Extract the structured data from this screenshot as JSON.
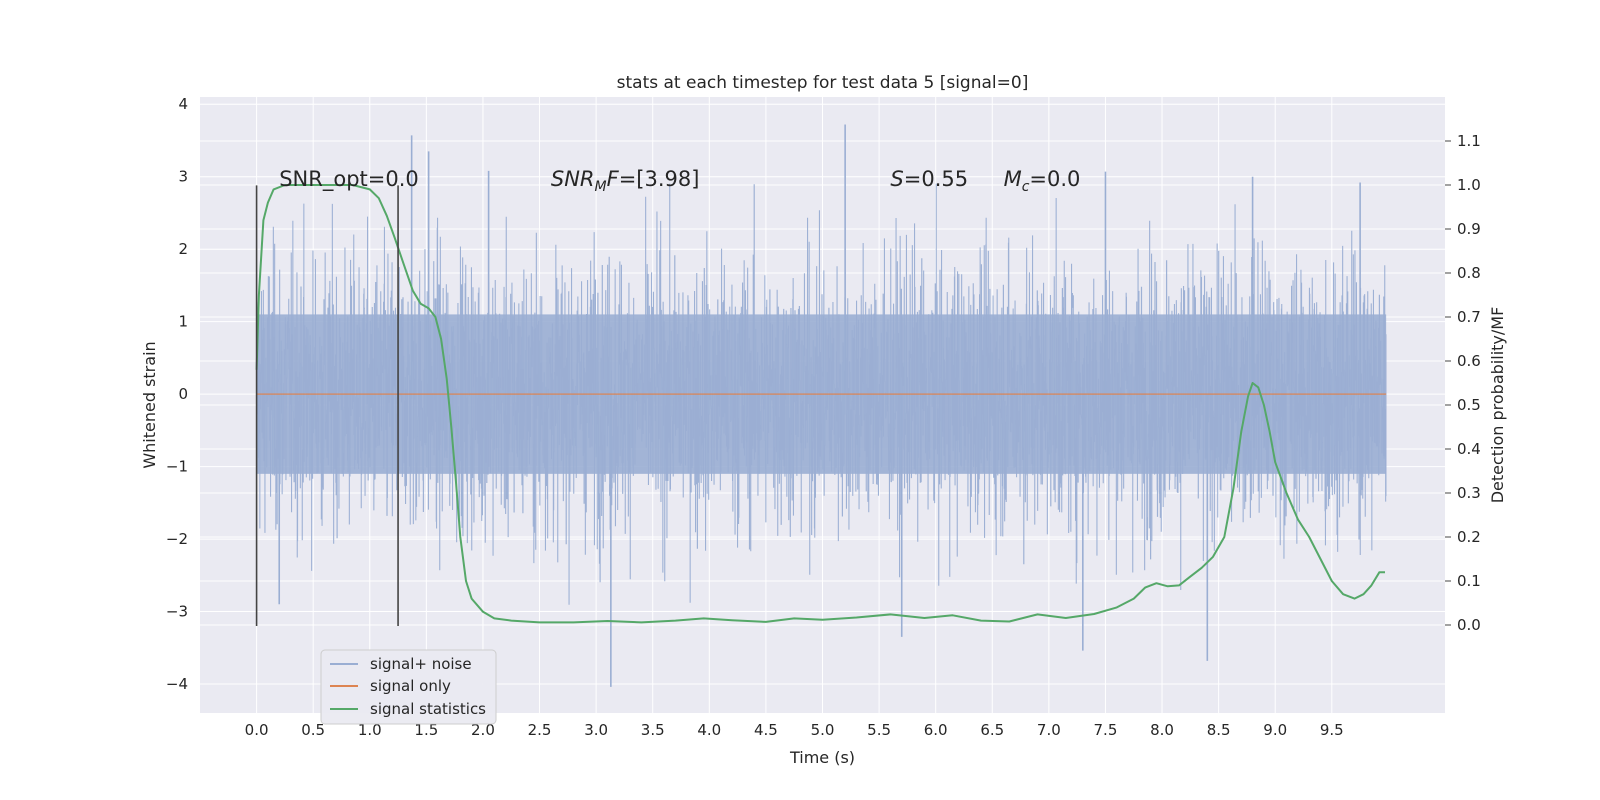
{
  "chart_data": {
    "type": "line",
    "title": "stats at each timestep for test data 5 [signal=0]",
    "xlabel": "Time (s)",
    "ylabel": "Whitened strain",
    "ylabel_right": "Detection probability/MF",
    "xlim": [
      -0.5,
      10.5
    ],
    "ylim": [
      -4.4,
      4.1
    ],
    "ylim_right": [
      -0.2,
      1.2
    ],
    "xticks": [
      0.0,
      0.5,
      1.0,
      1.5,
      2.0,
      2.5,
      3.0,
      3.5,
      4.0,
      4.5,
      5.0,
      5.5,
      6.0,
      6.5,
      7.0,
      7.5,
      8.0,
      8.5,
      9.0,
      9.5
    ],
    "xtick_labels": [
      "0.0",
      "0.5",
      "1.0",
      "1.5",
      "2.0",
      "2.5",
      "3.0",
      "3.5",
      "4.0",
      "4.5",
      "5.0",
      "5.5",
      "6.0",
      "6.5",
      "7.0",
      "7.5",
      "8.0",
      "8.5",
      "9.0",
      "9.5"
    ],
    "yticks": [
      -4,
      -3,
      -2,
      -1,
      0,
      1,
      2,
      3,
      4
    ],
    "ytick_labels": [
      "−4",
      "−3",
      "−2",
      "−1",
      "0",
      "1",
      "2",
      "3",
      "4"
    ],
    "yticks_right": [
      0.0,
      0.1,
      0.2,
      0.3,
      0.4,
      0.5,
      0.6,
      0.7,
      0.8,
      0.9,
      1.0,
      1.1
    ],
    "ytick_labels_right": [
      "0.0",
      "0.1",
      "0.2",
      "0.3",
      "0.4",
      "0.5",
      "0.6",
      "0.7",
      "0.8",
      "0.9",
      "1.0",
      "1.1"
    ],
    "grid": true,
    "legend_position": "lower-left",
    "colors": {
      "background": "#eaeaf2",
      "grid": "#ffffff",
      "noise": "#9aaed3",
      "signal": "#dd8452",
      "statistics": "#55a868",
      "markers": "#444444"
    },
    "series": [
      {
        "name": "signal+ noise",
        "axis": "left",
        "style": "dense-noise",
        "x_range": [
          0.0,
          9.98
        ],
        "typical_range": [
          -1.1,
          1.1
        ],
        "notable_peaks": [
          {
            "x": 1.37,
            "y": 3.57
          },
          {
            "x": 5.2,
            "y": 3.72
          },
          {
            "x": 1.52,
            "y": 3.35
          },
          {
            "x": 2.05,
            "y": 3.08
          },
          {
            "x": 7.5,
            "y": 3.07
          },
          {
            "x": 9.75,
            "y": 2.92
          },
          {
            "x": 8.8,
            "y": 3.0
          },
          {
            "x": 3.13,
            "y": -4.04
          },
          {
            "x": 8.4,
            "y": -3.68
          },
          {
            "x": 7.3,
            "y": -3.54
          },
          {
            "x": 5.7,
            "y": -3.35
          },
          {
            "x": 0.2,
            "y": -2.9
          }
        ]
      },
      {
        "name": "signal only",
        "axis": "left",
        "x": [
          0.0,
          9.98
        ],
        "y": [
          0.0,
          0.0
        ]
      },
      {
        "name": "signal statistics",
        "axis": "right",
        "x": [
          0.0,
          0.02,
          0.06,
          0.1,
          0.15,
          0.25,
          0.4,
          0.6,
          0.85,
          1.0,
          1.08,
          1.15,
          1.22,
          1.3,
          1.38,
          1.45,
          1.52,
          1.58,
          1.63,
          1.68,
          1.72,
          1.76,
          1.8,
          1.85,
          1.9,
          2.0,
          2.1,
          2.25,
          2.5,
          2.8,
          3.1,
          3.4,
          3.7,
          3.95,
          4.2,
          4.5,
          4.75,
          5.0,
          5.3,
          5.6,
          5.9,
          6.15,
          6.4,
          6.65,
          6.9,
          7.15,
          7.4,
          7.6,
          7.75,
          7.85,
          7.95,
          8.05,
          8.15,
          8.25,
          8.35,
          8.45,
          8.55,
          8.63,
          8.7,
          8.76,
          8.8,
          8.85,
          8.9,
          8.95,
          9.0,
          9.1,
          9.2,
          9.3,
          9.4,
          9.5,
          9.6,
          9.7,
          9.78,
          9.85,
          9.92,
          9.97
        ],
        "y": [
          0.58,
          0.75,
          0.92,
          0.96,
          0.99,
          1.0,
          1.0,
          1.0,
          1.0,
          0.99,
          0.97,
          0.93,
          0.88,
          0.82,
          0.76,
          0.73,
          0.72,
          0.7,
          0.65,
          0.56,
          0.45,
          0.33,
          0.2,
          0.1,
          0.06,
          0.03,
          0.015,
          0.01,
          0.006,
          0.006,
          0.009,
          0.006,
          0.01,
          0.015,
          0.011,
          0.007,
          0.015,
          0.012,
          0.017,
          0.024,
          0.016,
          0.022,
          0.01,
          0.008,
          0.024,
          0.016,
          0.025,
          0.04,
          0.06,
          0.085,
          0.095,
          0.088,
          0.09,
          0.11,
          0.13,
          0.155,
          0.2,
          0.31,
          0.44,
          0.52,
          0.55,
          0.54,
          0.5,
          0.44,
          0.37,
          0.3,
          0.24,
          0.2,
          0.15,
          0.1,
          0.07,
          0.06,
          0.07,
          0.09,
          0.12,
          0.12
        ]
      }
    ],
    "vertical_markers": [
      {
        "x": 0.0,
        "y_from": -3.2,
        "y_to": 2.88
      },
      {
        "x": 1.25,
        "y_from": -3.2,
        "y_to": 2.88
      }
    ],
    "annotations": [
      {
        "text": "SNR_opt=0.0",
        "x": 0.2,
        "y": 2.87,
        "parts": [
          {
            "t": "SNR_opt=0.0",
            "style": "normal"
          }
        ]
      },
      {
        "text": "SNR_MF=[3.98]",
        "x": 2.6,
        "y": 2.87,
        "parts": [
          {
            "t": "SNR",
            "style": "italic"
          },
          {
            "t": "M",
            "style": "italic-sub"
          },
          {
            "t": "F",
            "style": "italic"
          },
          {
            "t": "=[3.98]",
            "style": "normal"
          }
        ]
      },
      {
        "text": "S=0.55",
        "x": 5.6,
        "y": 2.87,
        "parts": [
          {
            "t": "S",
            "style": "italic"
          },
          {
            "t": "=0.55",
            "style": "normal"
          }
        ]
      },
      {
        "text": "M_c=0.0",
        "x": 6.6,
        "y": 2.87,
        "parts": [
          {
            "t": "M",
            "style": "italic"
          },
          {
            "t": "c",
            "style": "italic-sub"
          },
          {
            "t": "=0.0",
            "style": "normal"
          }
        ]
      }
    ]
  }
}
